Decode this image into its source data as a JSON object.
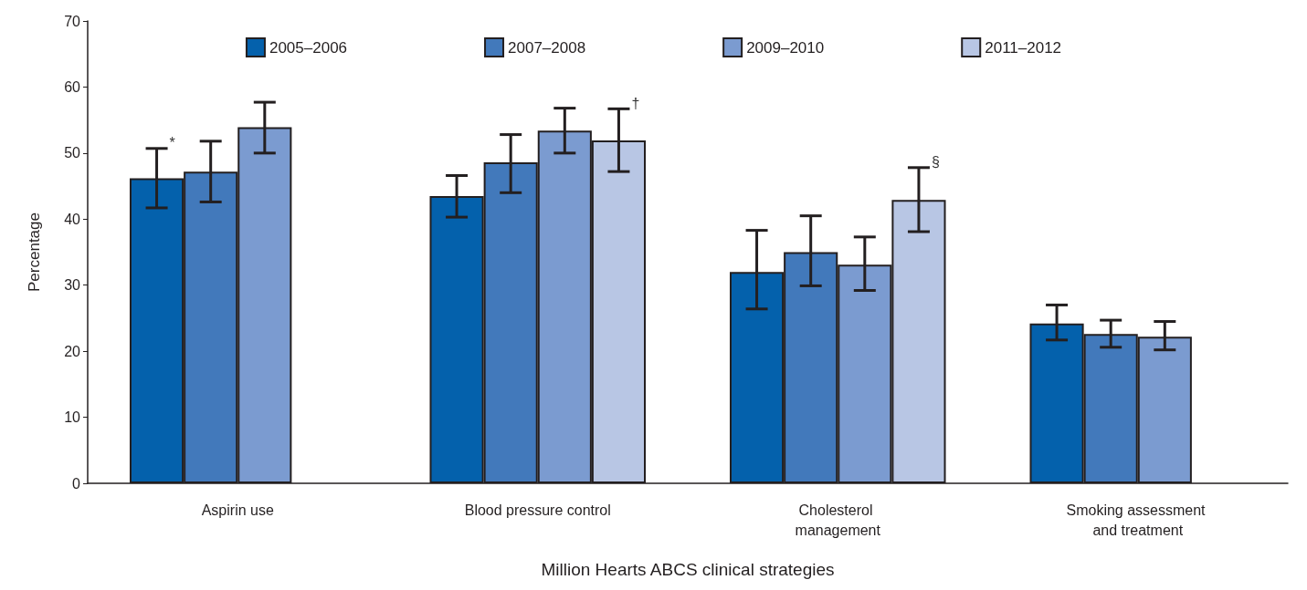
{
  "chart_data": {
    "type": "bar",
    "xlabel": "Million Hearts ABCS clinical strategies",
    "ylabel": "Percentage",
    "categories": [
      "Aspirin use",
      "Blood pressure control",
      "Cholesterol management",
      "Smoking assessment and treatment"
    ],
    "series": [
      {
        "name": "2005–2006",
        "color": "#0461ac",
        "values": [
          46.2,
          43.5,
          32.0,
          24.2
        ],
        "value_labels": [
          "*",
          null,
          null,
          null
        ],
        "errors": [
          [
            41.7,
            50.7
          ],
          [
            40.3,
            46.6
          ],
          [
            26.4,
            38.3
          ],
          [
            21.7,
            27.0
          ]
        ]
      },
      {
        "name": "2007–2008",
        "color": "#4279bb",
        "values": [
          47.2,
          48.6,
          35.0,
          22.6
        ],
        "errors": [
          [
            42.6,
            51.8
          ],
          [
            44.0,
            52.8
          ],
          [
            29.9,
            40.5
          ],
          [
            20.6,
            24.7
          ]
        ]
      },
      {
        "name": "2009–2010",
        "color": "#7b9bd0",
        "values": [
          53.9,
          53.4,
          33.1,
          22.2
        ],
        "errors": [
          [
            50.0,
            57.7
          ],
          [
            50.0,
            56.8
          ],
          [
            29.2,
            37.3
          ],
          [
            20.2,
            24.5
          ]
        ]
      },
      {
        "name": "2011–2012",
        "color": "#b8c6e4",
        "values": [
          null,
          51.9,
          42.9,
          null
        ],
        "value_labels": [
          null,
          "†",
          "§",
          null
        ],
        "errors": [
          null,
          [
            47.2,
            56.7
          ],
          [
            38.1,
            47.8
          ],
          null
        ]
      }
    ],
    "ylim": [
      0,
      70
    ],
    "yticks": [
      0,
      10,
      20,
      30,
      40,
      50,
      60,
      70
    ],
    "grid": false,
    "legend": "top"
  }
}
